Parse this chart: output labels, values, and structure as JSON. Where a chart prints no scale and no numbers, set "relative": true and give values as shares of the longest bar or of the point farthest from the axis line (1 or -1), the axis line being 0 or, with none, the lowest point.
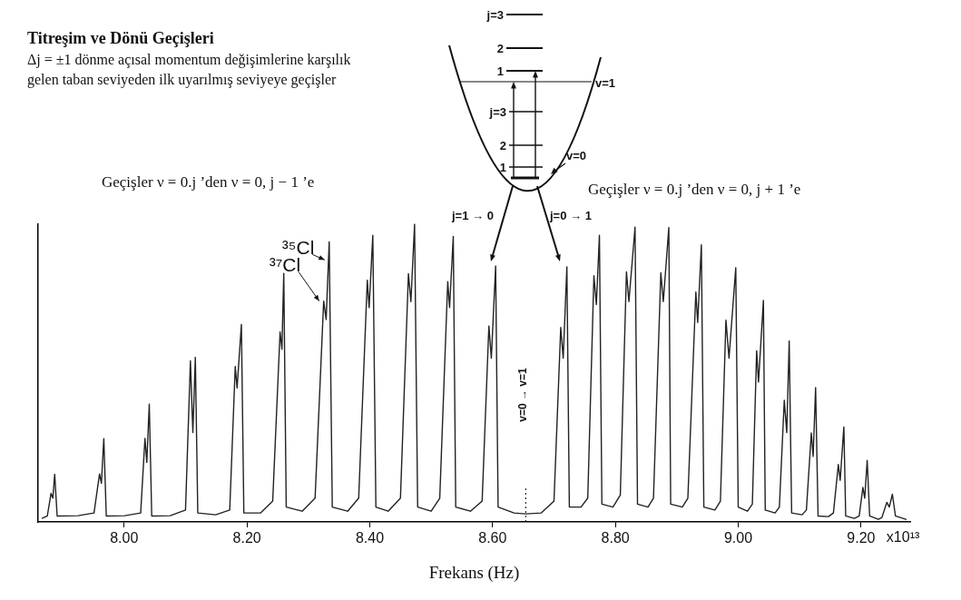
{
  "chart_data": {
    "type": "line",
    "title": "Titreşim ve Dönü Geçişleri",
    "subtitle": "Δj = ±1 dönme açısal momentum değişimlerine karşılık gelen taban seviyeden ilk uyarılmış seviyeye geçişler",
    "xlabel": "Frekans (Hz)",
    "relative": true,
    "color": "#222222",
    "marker": "none",
    "xlim": [
      7.86,
      9.28
    ],
    "xticks": [
      {
        "value": 8,
        "label": "8.00"
      },
      {
        "value": 8.2,
        "label": "8.20"
      },
      {
        "value": 8.4,
        "label": "8.40"
      },
      {
        "value": 8.6,
        "label": "8.60"
      },
      {
        "value": 8.8,
        "label": "8.80"
      },
      {
        "value": 9,
        "label": "9.00"
      },
      {
        "value": 9.2,
        "label": "9.20"
      }
    ],
    "x": [
      7.866,
      7.875,
      7.881,
      7.884,
      7.887,
      7.891,
      7.925,
      7.951,
      7.96,
      7.963,
      7.967,
      7.971,
      8.001,
      8.027,
      8.034,
      8.037,
      8.041,
      8.045,
      8.075,
      8.1,
      8.108,
      8.112,
      8.116,
      8.12,
      8.149,
      8.172,
      8.181,
      8.184,
      8.191,
      8.195,
      8.222,
      8.242,
      8.254,
      8.257,
      8.26,
      8.264,
      8.29,
      8.311,
      8.325,
      8.329,
      8.334,
      8.339,
      8.364,
      8.382,
      8.396,
      8.399,
      8.405,
      8.41,
      8.43,
      8.45,
      8.463,
      8.467,
      8.473,
      8.478,
      8.5,
      8.514,
      8.527,
      8.53,
      8.536,
      8.54,
      8.564,
      8.583,
      8.594,
      8.598,
      8.605,
      8.609,
      8.635,
      8.654,
      8.679,
      8.7,
      8.711,
      8.715,
      8.721,
      8.725,
      8.744,
      8.755,
      8.765,
      8.769,
      8.774,
      8.778,
      8.796,
      8.808,
      8.818,
      8.822,
      8.832,
      8.836,
      8.853,
      8.862,
      8.874,
      8.878,
      8.887,
      8.89,
      8.909,
      8.918,
      8.931,
      8.934,
      8.94,
      8.944,
      8.962,
      8.971,
      8.98,
      8.985,
      8.996,
      9.0,
      9.015,
      9.023,
      9.03,
      9.033,
      9.041,
      9.044,
      9.06,
      9.067,
      9.075,
      9.079,
      9.083,
      9.087,
      9.104,
      9.111,
      9.119,
      9.122,
      9.126,
      9.13,
      9.147,
      9.155,
      9.163,
      9.166,
      9.172,
      9.175,
      9.189,
      9.197,
      9.203,
      9.206,
      9.21,
      9.214,
      9.228,
      9.234,
      9.242,
      9.246,
      9.251,
      9.256,
      9.274
    ],
    "values": [
      0.012,
      0.02,
      0.096,
      0.08,
      0.16,
      0.02,
      0.021,
      0.03,
      0.161,
      0.13,
      0.28,
      0.02,
      0.021,
      0.03,
      0.281,
      0.2,
      0.396,
      0.02,
      0.021,
      0.04,
      0.541,
      0.3,
      0.553,
      0.03,
      0.024,
      0.04,
      0.522,
      0.45,
      0.663,
      0.03,
      0.03,
      0.07,
      0.638,
      0.58,
      0.835,
      0.05,
      0.036,
      0.08,
      0.742,
      0.68,
      0.941,
      0.05,
      0.036,
      0.08,
      0.812,
      0.72,
      0.963,
      0.05,
      0.036,
      0.08,
      0.834,
      0.74,
      1,
      0.05,
      0.036,
      0.08,
      0.807,
      0.72,
      0.959,
      0.05,
      0.036,
      0.07,
      0.658,
      0.55,
      0.86,
      0.05,
      0.03,
      0.027,
      0.03,
      0.07,
      0.653,
      0.55,
      0.857,
      0.05,
      0.05,
      0.08,
      0.827,
      0.73,
      0.963,
      0.06,
      0.05,
      0.09,
      0.84,
      0.74,
      0.99,
      0.06,
      0.05,
      0.08,
      0.837,
      0.74,
      0.989,
      0.06,
      0.05,
      0.08,
      0.772,
      0.67,
      0.931,
      0.05,
      0.04,
      0.07,
      0.678,
      0.55,
      0.854,
      0.05,
      0.036,
      0.06,
      0.575,
      0.47,
      0.744,
      0.04,
      0.03,
      0.05,
      0.409,
      0.3,
      0.608,
      0.03,
      0.024,
      0.04,
      0.299,
      0.22,
      0.451,
      0.02,
      0.018,
      0.03,
      0.193,
      0.14,
      0.319,
      0.02,
      0.012,
      0.02,
      0.116,
      0.08,
      0.207,
      0.02,
      0.009,
      0.015,
      0.066,
      0.05,
      0.093,
      0.02,
      0.008
    ],
    "ref_lines": [
      {
        "axis": "x",
        "value": 8.654,
        "line_style": "dotted"
      }
    ],
    "annotations": [
      "Geçişler ν = 0.j ’den ν = 0, j − 1 ’e",
      "Geçişler ν = 0.j ’den ν = 0, j + 1 ’e",
      {
        "text": "³⁵Cl",
        "x": 8.334,
        "y": 0.941
      },
      {
        "text": "³⁷Cl",
        "x": 8.325,
        "y": 0.742
      },
      "x10¹³",
      "j=3",
      "2",
      "1",
      "v=1",
      "j=3",
      "2",
      "1",
      "v=0",
      "j=1 → 0",
      "j=0 → 1",
      "v=0 → v=1"
    ]
  }
}
